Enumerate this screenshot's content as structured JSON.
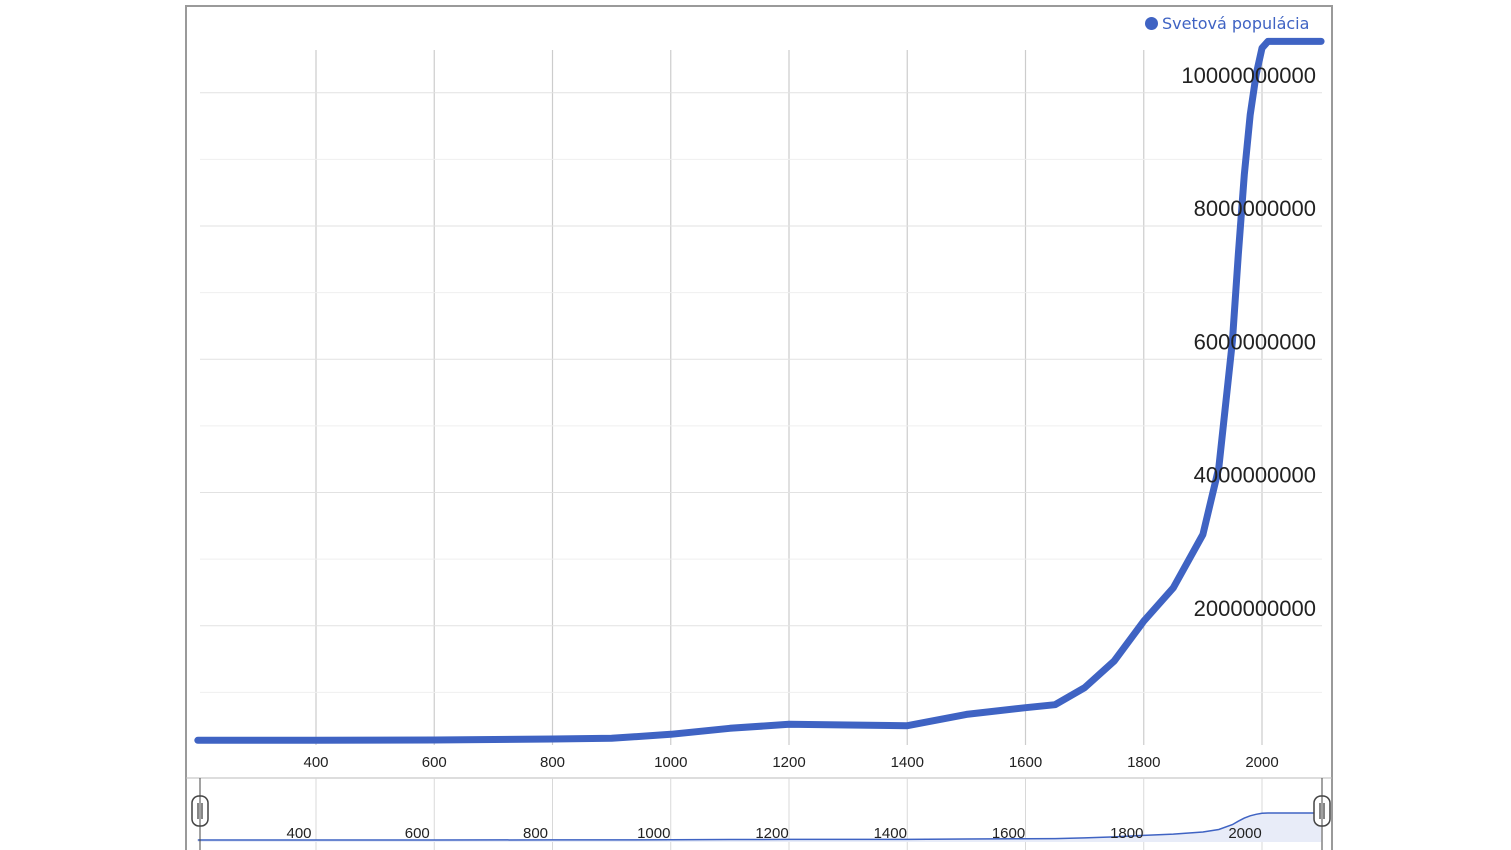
{
  "chart_data": {
    "type": "line",
    "title": "",
    "xlabel": "",
    "ylabel": "",
    "xlim": [
      200,
      2100
    ],
    "ylim": [
      -200000000,
      10500000000
    ],
    "x_ticks": [
      400,
      600,
      800,
      1000,
      1200,
      1400,
      1600,
      1800,
      2000
    ],
    "y_ticks": [
      2000000000,
      4000000000,
      6000000000,
      8000000000,
      10000000000
    ],
    "y_tick_labels": [
      "2000000000",
      "4000000000",
      "6000000000",
      "8000000000",
      "10000000000"
    ],
    "y_minor_gridlines": [
      1000000000,
      3000000000,
      5000000000,
      7000000000,
      9000000000
    ],
    "grid": true,
    "legend_position": "top-right",
    "colors": {
      "series": "#3f63c3",
      "grid": "#cfcfcf",
      "navigator_fill": "#e8ecf8"
    },
    "series": [
      {
        "name": "Svetová populácia",
        "x": [
          200,
          400,
          600,
          800,
          900,
          1000,
          1100,
          1200,
          1300,
          1400,
          1500,
          1600,
          1650,
          1700,
          1750,
          1800,
          1850,
          1900,
          1927,
          1950,
          1960,
          1970,
          1980,
          1990,
          2000,
          2010,
          2020,
          2030,
          2050,
          2070,
          2090,
          2100
        ],
        "values": [
          10000000,
          10000000,
          15000000,
          30000000,
          40000000,
          100000000,
          190000000,
          250000000,
          240000000,
          230000000,
          400000000,
          500000000,
          545000000,
          800000000,
          1200000000,
          1800000000,
          2300000000,
          3100000000,
          4100000000,
          6000000000,
          7300000000,
          8500000000,
          9400000000,
          10000000000,
          10400000000,
          10500000000,
          10500000000,
          10500000000,
          10500000000,
          10500000000,
          10500000000,
          10500000000
        ]
      }
    ],
    "navigator": {
      "x_ticks": [
        400,
        600,
        800,
        1000,
        1200,
        1400,
        1600,
        1800,
        2000
      ],
      "range": [
        200,
        2100
      ]
    }
  },
  "legend": {
    "label": "Svetová populácia"
  }
}
